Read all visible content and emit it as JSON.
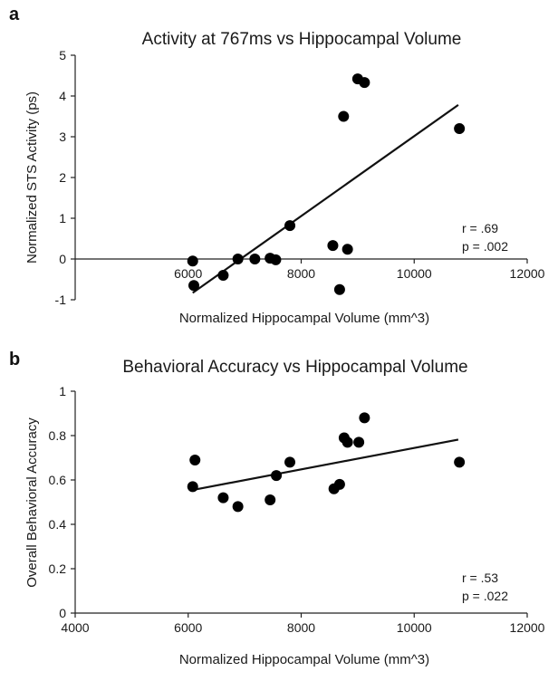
{
  "chart_data": [
    {
      "panel": "a",
      "type": "scatter",
      "title": "Activity at 767ms vs Hippocampal Volume",
      "xlabel": "Normalized Hippocampal Volume (mm^3)",
      "ylabel": "Normalized STS Activity (ps)",
      "xlim": [
        4000,
        12000
      ],
      "ylim": [
        -1,
        5
      ],
      "xticks": [
        6000,
        8000,
        10000,
        12000
      ],
      "yticks": [
        -1,
        0,
        1,
        2,
        3,
        4,
        5
      ],
      "x_axis_at_y": 0,
      "points": [
        {
          "x": 6080,
          "y": -0.05
        },
        {
          "x": 6100,
          "y": -0.65
        },
        {
          "x": 6620,
          "y": -0.4
        },
        {
          "x": 6880,
          "y": 0.0
        },
        {
          "x": 7180,
          "y": 0.0
        },
        {
          "x": 7450,
          "y": 0.02
        },
        {
          "x": 7550,
          "y": -0.02
        },
        {
          "x": 7800,
          "y": 0.82
        },
        {
          "x": 8560,
          "y": 0.33
        },
        {
          "x": 8680,
          "y": -0.75
        },
        {
          "x": 8750,
          "y": 3.5
        },
        {
          "x": 8820,
          "y": 0.24
        },
        {
          "x": 9000,
          "y": 4.42
        },
        {
          "x": 9120,
          "y": 4.33
        },
        {
          "x": 10800,
          "y": 3.2
        }
      ],
      "trendline": {
        "x": [
          6080,
          10780
        ],
        "y": [
          -0.83,
          3.78
        ]
      },
      "annotations": [
        "r = .69",
        "p = .002"
      ]
    },
    {
      "panel": "b",
      "type": "scatter",
      "title": "Behavioral Accuracy vs Hippocampal Volume",
      "xlabel": "Normalized Hippocampal Volume (mm^3)",
      "ylabel": "Overall Behavioral Accuracy",
      "xlim": [
        4000,
        12000
      ],
      "ylim": [
        0,
        1
      ],
      "xticks": [
        4000,
        6000,
        8000,
        10000,
        12000
      ],
      "yticks": [
        0,
        0.2,
        0.4,
        0.6,
        0.8,
        1
      ],
      "ytick_labels": [
        "0",
        "0.2",
        "0.4",
        "0.6",
        "0.8",
        "1"
      ],
      "x_axis_at_y": 0,
      "points": [
        {
          "x": 6080,
          "y": 0.57
        },
        {
          "x": 6120,
          "y": 0.69
        },
        {
          "x": 6620,
          "y": 0.52
        },
        {
          "x": 6880,
          "y": 0.48
        },
        {
          "x": 7450,
          "y": 0.51
        },
        {
          "x": 7560,
          "y": 0.62
        },
        {
          "x": 7800,
          "y": 0.68
        },
        {
          "x": 8580,
          "y": 0.56
        },
        {
          "x": 8680,
          "y": 0.58
        },
        {
          "x": 8760,
          "y": 0.79
        },
        {
          "x": 8820,
          "y": 0.77
        },
        {
          "x": 9020,
          "y": 0.77
        },
        {
          "x": 9120,
          "y": 0.88
        },
        {
          "x": 10800,
          "y": 0.68
        }
      ],
      "trendline": {
        "x": [
          6080,
          10780
        ],
        "y": [
          0.555,
          0.782
        ]
      },
      "annotations": [
        "r = .53",
        "p = .022"
      ]
    }
  ]
}
